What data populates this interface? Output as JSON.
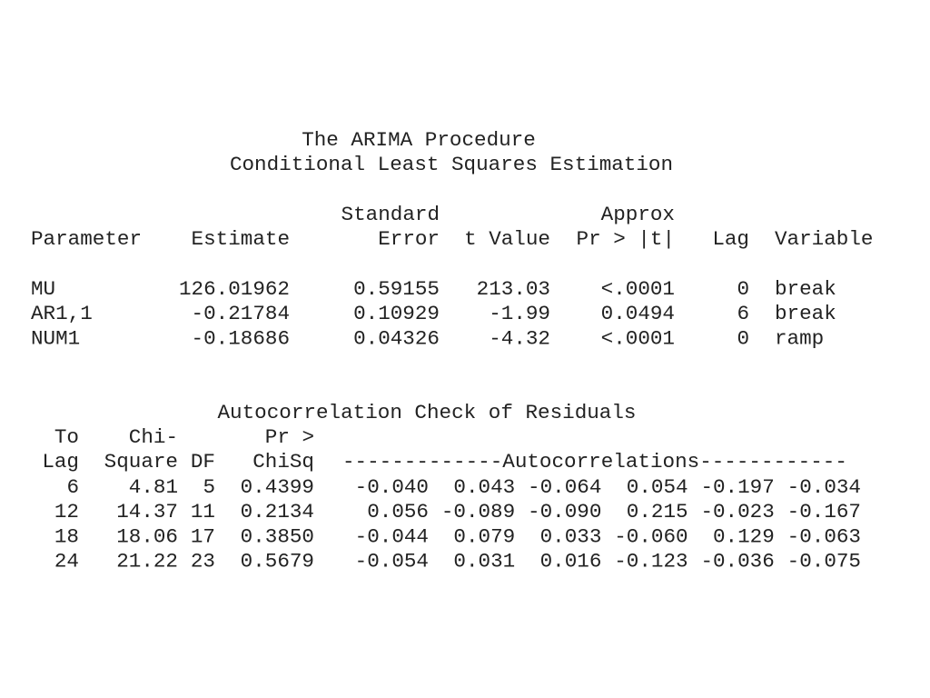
{
  "header": {
    "title": "The ARIMA Procedure",
    "subtitle": "Conditional Least Squares Estimation"
  },
  "parameter_table": {
    "columns": [
      {
        "bottom": "Parameter"
      },
      {
        "bottom": "Estimate"
      },
      {
        "top": "Standard",
        "bottom": "Error"
      },
      {
        "bottom": "t Value"
      },
      {
        "top": "Approx",
        "bottom": "Pr > |t|"
      },
      {
        "bottom": "Lag"
      },
      {
        "bottom": "Variable"
      }
    ],
    "rows": [
      [
        "MU",
        "126.01962",
        "0.59155",
        "213.03",
        "<.0001",
        "0",
        "break"
      ],
      [
        "AR1,1",
        "-0.21784",
        "0.10929",
        "-1.99",
        "0.0494",
        "6",
        "break"
      ],
      [
        "NUM1",
        "-0.18686",
        "0.04326",
        "-4.32",
        "<.0001",
        "0",
        "ramp"
      ]
    ]
  },
  "autocorrelation_check": {
    "title": "Autocorrelation Check of Residuals",
    "columns": [
      {
        "top": "To",
        "bottom": "Lag"
      },
      {
        "top": "Chi-",
        "bottom": "Square"
      },
      {
        "bottom": "DF"
      },
      {
        "top": "Pr >",
        "bottom": "ChiSq"
      }
    ],
    "autocorrelations_header": "-------------Autocorrelations------------",
    "rows": [
      [
        "6",
        "4.81",
        "5",
        "0.4399",
        "-0.040",
        "0.043",
        "-0.064",
        "0.054",
        "-0.197",
        "-0.034"
      ],
      [
        "12",
        "14.37",
        "11",
        "0.2134",
        "0.056",
        "-0.089",
        "-0.090",
        "0.215",
        "-0.023",
        "-0.167"
      ],
      [
        "18",
        "18.06",
        "17",
        "0.3850",
        "-0.044",
        "0.079",
        "0.033",
        "-0.060",
        "0.129",
        "-0.063"
      ],
      [
        "24",
        "21.22",
        "23",
        "0.5679",
        "-0.054",
        "0.031",
        "0.016",
        "-0.123",
        "-0.036",
        "-0.075"
      ]
    ]
  }
}
